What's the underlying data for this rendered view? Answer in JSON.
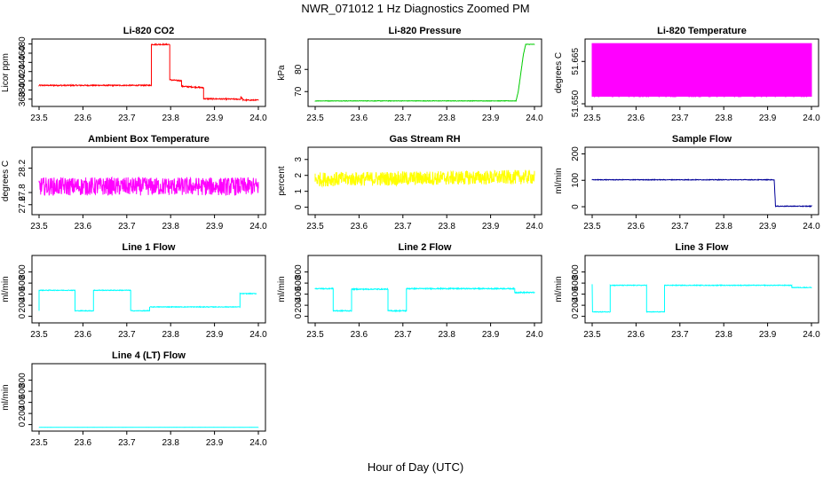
{
  "figure": {
    "title": "NWR_071012  1 Hz Diagnostics Zoomed PM",
    "xlabel": "Hour of Day (UTC)"
  },
  "chart_data": [
    {
      "type": "line",
      "title": "Li-820 CO2",
      "ylabel": "Licor ppm",
      "color": "#ff0000",
      "xlim": [
        23.5,
        24.0
      ],
      "ylim": [
        350,
        485
      ],
      "xticks": [
        "23.5",
        "23.6",
        "23.7",
        "23.8",
        "23.9",
        "24.0"
      ],
      "yticks": [
        "360",
        "380",
        "400",
        "420",
        "440",
        "460",
        "480"
      ],
      "series": [
        {
          "x": [
            23.5,
            23.756,
            23.756,
            23.765,
            23.765,
            23.798,
            23.798,
            23.825,
            23.825,
            23.875,
            23.875,
            23.96,
            23.96,
            23.965,
            23.965,
            24.0
          ],
          "y": [
            390,
            390,
            479,
            479,
            479,
            479,
            402,
            400,
            388,
            385,
            361,
            360,
            365,
            360,
            358,
            358
          ],
          "noise": 1.2
        }
      ]
    },
    {
      "type": "line",
      "title": "Li-820 Pressure",
      "ylabel": "kPa",
      "color": "#00cc00",
      "xlim": [
        23.5,
        24.0
      ],
      "ylim": [
        64.5,
        92.5
      ],
      "xticks": [
        "23.5",
        "23.6",
        "23.7",
        "23.8",
        "23.9",
        "24.0"
      ],
      "yticks": [
        "70",
        "80"
      ],
      "series": [
        {
          "x": [
            23.5,
            23.958,
            23.963,
            23.975,
            23.98,
            24.0
          ],
          "y": [
            65.8,
            65.8,
            70,
            87,
            91.3,
            91.3
          ],
          "noise": 0.1
        }
      ]
    },
    {
      "type": "line",
      "title": "Li-820 Temperature",
      "ylabel": "degrees C",
      "color": "#ff00ff",
      "xlim": [
        23.5,
        24.0
      ],
      "ylim": [
        51.65,
        51.672
      ],
      "xticks": [
        "23.5",
        "23.6",
        "23.7",
        "23.8",
        "23.9",
        "24.0"
      ],
      "yticks": [
        "51.650",
        "51.665"
      ],
      "series": [
        {
          "x": [
            23.5,
            24.0
          ],
          "y": [
            51.6525,
            51.6715
          ],
          "pattern": "binary"
        }
      ]
    },
    {
      "type": "line",
      "title": "Ambient Box Temperature",
      "ylabel": "degrees C",
      "color": "#ff00ff",
      "xlim": [
        23.5,
        24.0
      ],
      "ylim": [
        27.48,
        28.5
      ],
      "xticks": [
        "23.5",
        "23.6",
        "23.7",
        "23.8",
        "23.9",
        "24.0"
      ],
      "yticks": [
        "27.6",
        "27.8",
        "28.2"
      ],
      "series": [
        {
          "x": [
            23.5,
            24.0
          ],
          "y": [
            27.9,
            27.9
          ],
          "noise": 0.15
        }
      ]
    },
    {
      "type": "line",
      "title": "Gas Stream RH",
      "ylabel": "percent",
      "color": "#ffff00",
      "xlim": [
        23.5,
        24.0
      ],
      "ylim": [
        -0.3,
        3.6
      ],
      "xticks": [
        "23.5",
        "23.6",
        "23.7",
        "23.8",
        "23.9",
        "24.0"
      ],
      "yticks": [
        "0",
        "1",
        "2",
        "3"
      ],
      "series": [
        {
          "x": [
            23.5,
            24.0
          ],
          "y": [
            1.75,
            1.9
          ],
          "noise": 0.45
        }
      ]
    },
    {
      "type": "line",
      "title": "Sample Flow",
      "ylabel": "ml/min",
      "color": "#000099",
      "xlim": [
        23.5,
        24.0
      ],
      "ylim": [
        -20,
        215
      ],
      "xticks": [
        "23.5",
        "23.6",
        "23.7",
        "23.8",
        "23.9",
        "24.0"
      ],
      "yticks": [
        "0",
        "100",
        "200"
      ],
      "series": [
        {
          "x": [
            23.5,
            23.915,
            23.918,
            24.0
          ],
          "y": [
            102,
            102,
            2,
            2
          ],
          "noise": 1.2
        }
      ]
    },
    {
      "type": "line",
      "title": "Line 1 Flow",
      "ylabel": "ml/min",
      "color": "#00ffff",
      "xlim": [
        23.5,
        24.0
      ],
      "ylim": [
        -70,
        1050
      ],
      "xticks": [
        "23.5",
        "23.6",
        "23.7",
        "23.8",
        "23.9",
        "24.0"
      ],
      "yticks": [
        "0",
        "200",
        "400",
        "600",
        "800"
      ],
      "series": [
        {
          "x": [
            23.5,
            23.5,
            23.582,
            23.582,
            23.624,
            23.624,
            23.709,
            23.709,
            23.752,
            23.752,
            23.958,
            23.958,
            23.996,
            23.996
          ],
          "y": [
            100,
            470,
            470,
            100,
            100,
            470,
            470,
            100,
            100,
            170,
            170,
            410,
            410,
            410
          ],
          "noise": 6
        }
      ]
    },
    {
      "type": "line",
      "title": "Line 2 Flow",
      "ylabel": "ml/min",
      "color": "#00ffff",
      "xlim": [
        23.5,
        24.0
      ],
      "ylim": [
        -70,
        1050
      ],
      "xticks": [
        "23.5",
        "23.6",
        "23.7",
        "23.8",
        "23.9",
        "24.0"
      ],
      "yticks": [
        "0",
        "200",
        "400",
        "600",
        "800"
      ],
      "series": [
        {
          "x": [
            23.5,
            23.541,
            23.541,
            23.583,
            23.583,
            23.666,
            23.666,
            23.708,
            23.708,
            23.955,
            23.955,
            24.0
          ],
          "y": [
            500,
            500,
            100,
            100,
            490,
            490,
            100,
            100,
            500,
            500,
            430,
            430
          ],
          "noise": 9
        }
      ]
    },
    {
      "type": "line",
      "title": "Line 3 Flow",
      "ylabel": "ml/min",
      "color": "#00ffff",
      "xlim": [
        23.5,
        24.0
      ],
      "ylim": [
        -70,
        1050
      ],
      "xticks": [
        "23.5",
        "23.6",
        "23.7",
        "23.8",
        "23.9",
        "24.0"
      ],
      "yticks": [
        "0",
        "200",
        "400",
        "600",
        "800"
      ],
      "series": [
        {
          "x": [
            23.5,
            23.5,
            23.5,
            23.541,
            23.541,
            23.624,
            23.624,
            23.665,
            23.665,
            23.955,
            23.955,
            24.0
          ],
          "y": [
            580,
            580,
            80,
            80,
            560,
            560,
            80,
            80,
            560,
            560,
            520,
            520
          ],
          "noise": 6
        }
      ]
    },
    {
      "type": "line",
      "title": "Line 4 (LT) Flow",
      "ylabel": "ml/min",
      "color": "#00ffff",
      "xlim": [
        23.5,
        24.0
      ],
      "ylim": [
        -70,
        1050
      ],
      "xticks": [
        "23.5",
        "23.6",
        "23.7",
        "23.8",
        "23.9",
        "24.0"
      ],
      "yticks": [
        "0",
        "200",
        "400",
        "600",
        "800"
      ],
      "series": [
        {
          "x": [
            23.5,
            24.0
          ],
          "y": [
            -50,
            -50
          ],
          "noise": 1
        }
      ]
    }
  ]
}
